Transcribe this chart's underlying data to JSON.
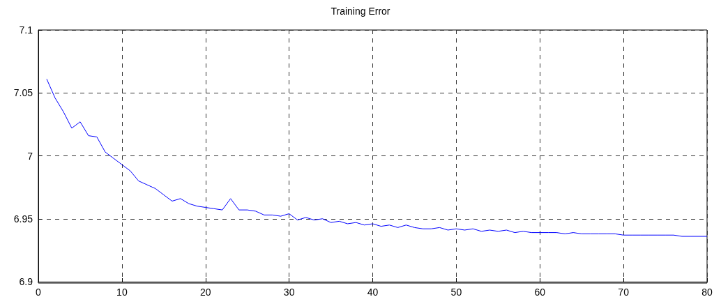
{
  "chart_data": {
    "type": "line",
    "title": "Training Error",
    "x": [
      1,
      2,
      3,
      4,
      5,
      6,
      7,
      8,
      9,
      10,
      11,
      12,
      13,
      14,
      15,
      16,
      17,
      18,
      19,
      20,
      21,
      22,
      23,
      24,
      25,
      26,
      27,
      28,
      29,
      30,
      31,
      32,
      33,
      34,
      35,
      36,
      37,
      38,
      39,
      40,
      41,
      42,
      43,
      44,
      45,
      46,
      47,
      48,
      49,
      50,
      51,
      52,
      53,
      54,
      55,
      56,
      57,
      58,
      59,
      60,
      61,
      62,
      63,
      64,
      65,
      66,
      67,
      68,
      69,
      70,
      71,
      72,
      73,
      74,
      75,
      76,
      77,
      78,
      79,
      80
    ],
    "series": [
      {
        "color": "#0000ff",
        "values": [
          7.061,
          7.046,
          7.035,
          7.022,
          7.027,
          7.016,
          7.015,
          7.003,
          6.998,
          6.993,
          6.988,
          6.98,
          6.977,
          6.974,
          6.969,
          6.964,
          6.966,
          6.962,
          6.96,
          6.959,
          6.958,
          6.957,
          6.966,
          6.957,
          6.957,
          6.956,
          6.953,
          6.953,
          6.952,
          6.954,
          6.949,
          6.951,
          6.949,
          6.95,
          6.947,
          6.948,
          6.946,
          6.947,
          6.945,
          6.946,
          6.944,
          6.945,
          6.943,
          6.945,
          6.943,
          6.942,
          6.942,
          6.943,
          6.941,
          6.942,
          6.941,
          6.942,
          6.94,
          6.941,
          6.94,
          6.941,
          6.939,
          6.94,
          6.939,
          6.939,
          6.939,
          6.939,
          6.938,
          6.939,
          6.938,
          6.938,
          6.938,
          6.938,
          6.938,
          6.937,
          6.937,
          6.937,
          6.937,
          6.937,
          6.937,
          6.937,
          6.936,
          6.936,
          6.936,
          6.936
        ]
      }
    ],
    "xlim": [
      0,
      80
    ],
    "xticks": [
      0,
      10,
      20,
      30,
      40,
      50,
      60,
      70,
      80
    ],
    "ylim": [
      6.9,
      7.1
    ],
    "yticks": [
      6.9,
      6.95,
      7,
      7.05,
      7.1
    ],
    "grid": true,
    "marker": "none",
    "line_style": "solid"
  }
}
